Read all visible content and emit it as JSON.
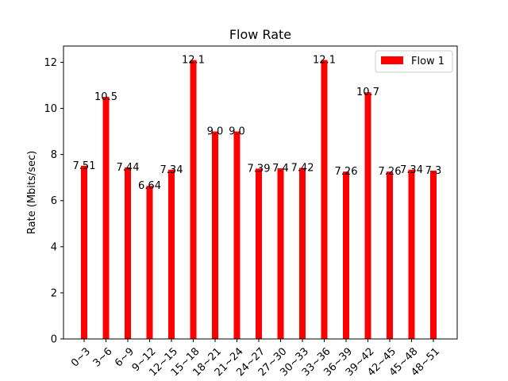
{
  "chart_data": {
    "type": "bar",
    "title": "Flow Rate",
    "xlabel": "",
    "ylabel": "Rate (Mbits/sec)",
    "ylim": [
      0,
      12.705
    ],
    "yticks": [
      0,
      2,
      4,
      6,
      8,
      10,
      12
    ],
    "ytick_labels": [
      "0",
      "2",
      "4",
      "6",
      "8",
      "10",
      "12"
    ],
    "categories": [
      "0~3",
      "3~6",
      "6~9",
      "9~12",
      "12~15",
      "15~18",
      "18~21",
      "21~24",
      "24~27",
      "27~30",
      "30~33",
      "33~36",
      "36~39",
      "39~42",
      "42~45",
      "45~48",
      "48~51"
    ],
    "series": [
      {
        "name": "Flow 1",
        "color": "#ff0000",
        "values": [
          7.51,
          10.5,
          7.44,
          6.64,
          7.34,
          12.1,
          9.0,
          9.0,
          7.39,
          7.4,
          7.42,
          12.1,
          7.26,
          10.7,
          7.26,
          7.34,
          7.3
        ],
        "labels": [
          "7.51",
          "10.5",
          "7.44",
          "6.64",
          "7.34",
          "12.1",
          "9.0",
          "9.0",
          "7.39",
          "7.4",
          "7.42",
          "12.1",
          "7.26",
          "10.7",
          "7.26",
          "7.34",
          "7.3"
        ]
      }
    ],
    "legend": {
      "placement": "top-right"
    },
    "grid": false
  }
}
